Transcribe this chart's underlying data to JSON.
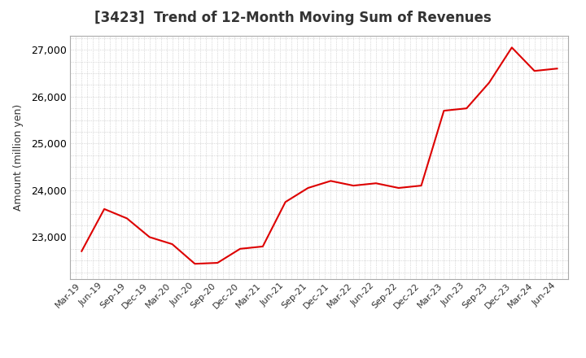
{
  "title": "[3423]  Trend of 12-Month Moving Sum of Revenues",
  "ylabel": "Amount (million yen)",
  "line_color": "#dd0000",
  "background_color": "#ffffff",
  "grid_color": "#bbbbbb",
  "ylim": [
    22100,
    27300
  ],
  "yticks": [
    23000,
    24000,
    25000,
    26000,
    27000
  ],
  "labels": [
    "Mar-19",
    "Jun-19",
    "Sep-19",
    "Dec-19",
    "Mar-20",
    "Jun-20",
    "Sep-20",
    "Dec-20",
    "Mar-21",
    "Jun-21",
    "Sep-21",
    "Dec-21",
    "Mar-22",
    "Jun-22",
    "Sep-22",
    "Dec-22",
    "Mar-23",
    "Jun-23",
    "Sep-23",
    "Dec-23",
    "Mar-24",
    "Jun-24"
  ],
  "values": [
    22700,
    23600,
    23400,
    23000,
    22850,
    22430,
    22450,
    22750,
    22800,
    23750,
    24050,
    24200,
    24100,
    24150,
    24050,
    24100,
    25700,
    25750,
    26300,
    27050,
    26550,
    26600
  ]
}
